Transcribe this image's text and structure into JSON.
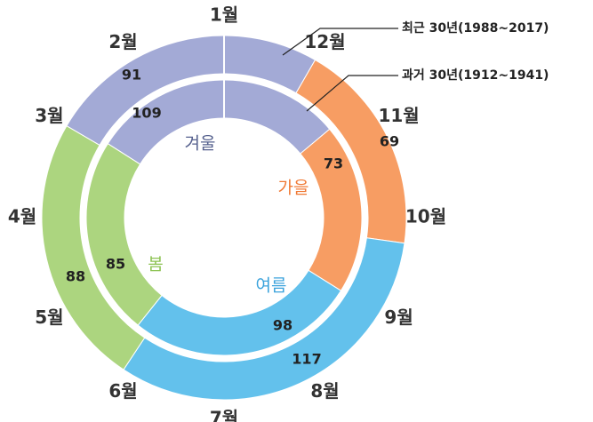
{
  "chart_data": {
    "type": "donut",
    "months": [
      "1월",
      "2월",
      "3월",
      "4월",
      "5월",
      "6월",
      "7월",
      "8월",
      "9월",
      "10월",
      "11월",
      "12월"
    ],
    "categories": [
      "겨울",
      "가을",
      "여름",
      "봄"
    ],
    "colors": [
      "#a3aad6",
      "#f79d63",
      "#63c1ec",
      "#acd57f"
    ],
    "label_colors": [
      "#56618e",
      "#f07a36",
      "#3ba3dc",
      "#8dc353"
    ],
    "series": [
      {
        "name": "최근 30년(1988~2017)",
        "values": [
          91,
          69,
          117,
          88
        ]
      },
      {
        "name": "과거 30년(1912~1941)",
        "values": [
          109,
          73,
          98,
          85
        ]
      }
    ]
  }
}
